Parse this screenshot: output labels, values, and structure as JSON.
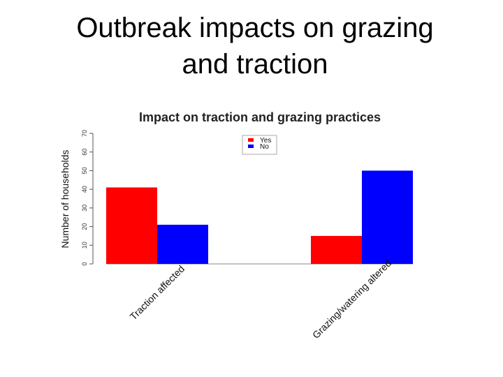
{
  "slide": {
    "title_line1": "Outbreak impacts on grazing",
    "title_line2": "and traction"
  },
  "chart_data": {
    "type": "bar",
    "title": "Impact on traction and grazing practices",
    "xlabel": "",
    "ylabel": "Number of households",
    "categories": [
      "Traction affected",
      "Grazing/watering altered"
    ],
    "series": [
      {
        "name": "Yes",
        "color": "#ff0000",
        "values": [
          41,
          15
        ]
      },
      {
        "name": "No",
        "color": "#0000ff",
        "values": [
          21,
          50
        ]
      }
    ],
    "ylim": [
      0,
      70
    ],
    "yticks": [
      "0",
      "10",
      "20",
      "30",
      "40",
      "50",
      "60",
      "70"
    ],
    "grid": false,
    "legend_position": "top-center"
  }
}
